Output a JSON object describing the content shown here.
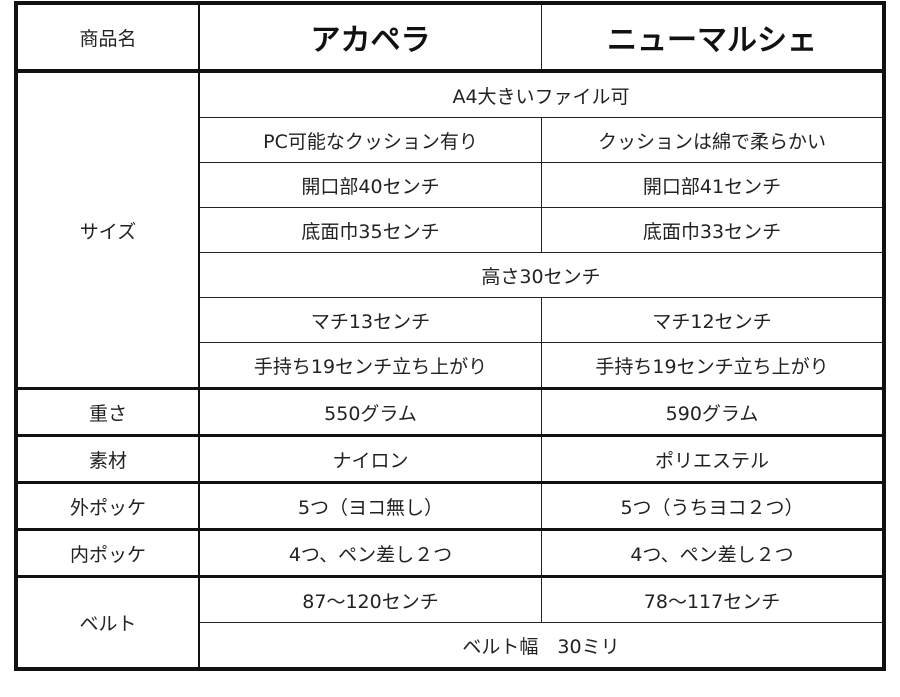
{
  "header": {
    "label": "商品名",
    "products": [
      "アカペラ",
      "ニューマルシェ"
    ]
  },
  "size": {
    "label": "サイズ",
    "rows": [
      {
        "shared": "A4大きいファイル可"
      },
      {
        "a": "PC可能なクッション有り",
        "b": "クッションは綿で柔らかい"
      },
      {
        "a": "開口部40センチ",
        "b": "開口部41センチ"
      },
      {
        "a": "底面巾35センチ",
        "b": "底面巾33センチ"
      },
      {
        "shared": "高さ30センチ"
      },
      {
        "a": "マチ13センチ",
        "b": "マチ12センチ"
      },
      {
        "a": "手持ち19センチ立ち上がり",
        "b": "手持ち19センチ立ち上がり"
      }
    ]
  },
  "weight": {
    "label": "重さ",
    "a": "550グラム",
    "b": "590グラム"
  },
  "material": {
    "label": "素材",
    "a": "ナイロン",
    "b": "ポリエステル"
  },
  "outer_pocket": {
    "label": "外ポッケ",
    "a": "5つ（ヨコ無し）",
    "b": "5つ（うちヨコ２つ）"
  },
  "inner_pocket": {
    "label": "内ポッケ",
    "a": "4つ、ペン差し２つ",
    "b": "4つ、ペン差し２つ"
  },
  "belt": {
    "label": "ベルト",
    "a": "87〜120センチ",
    "b": "78〜117センチ",
    "shared": "ベルト幅　30ミリ"
  }
}
